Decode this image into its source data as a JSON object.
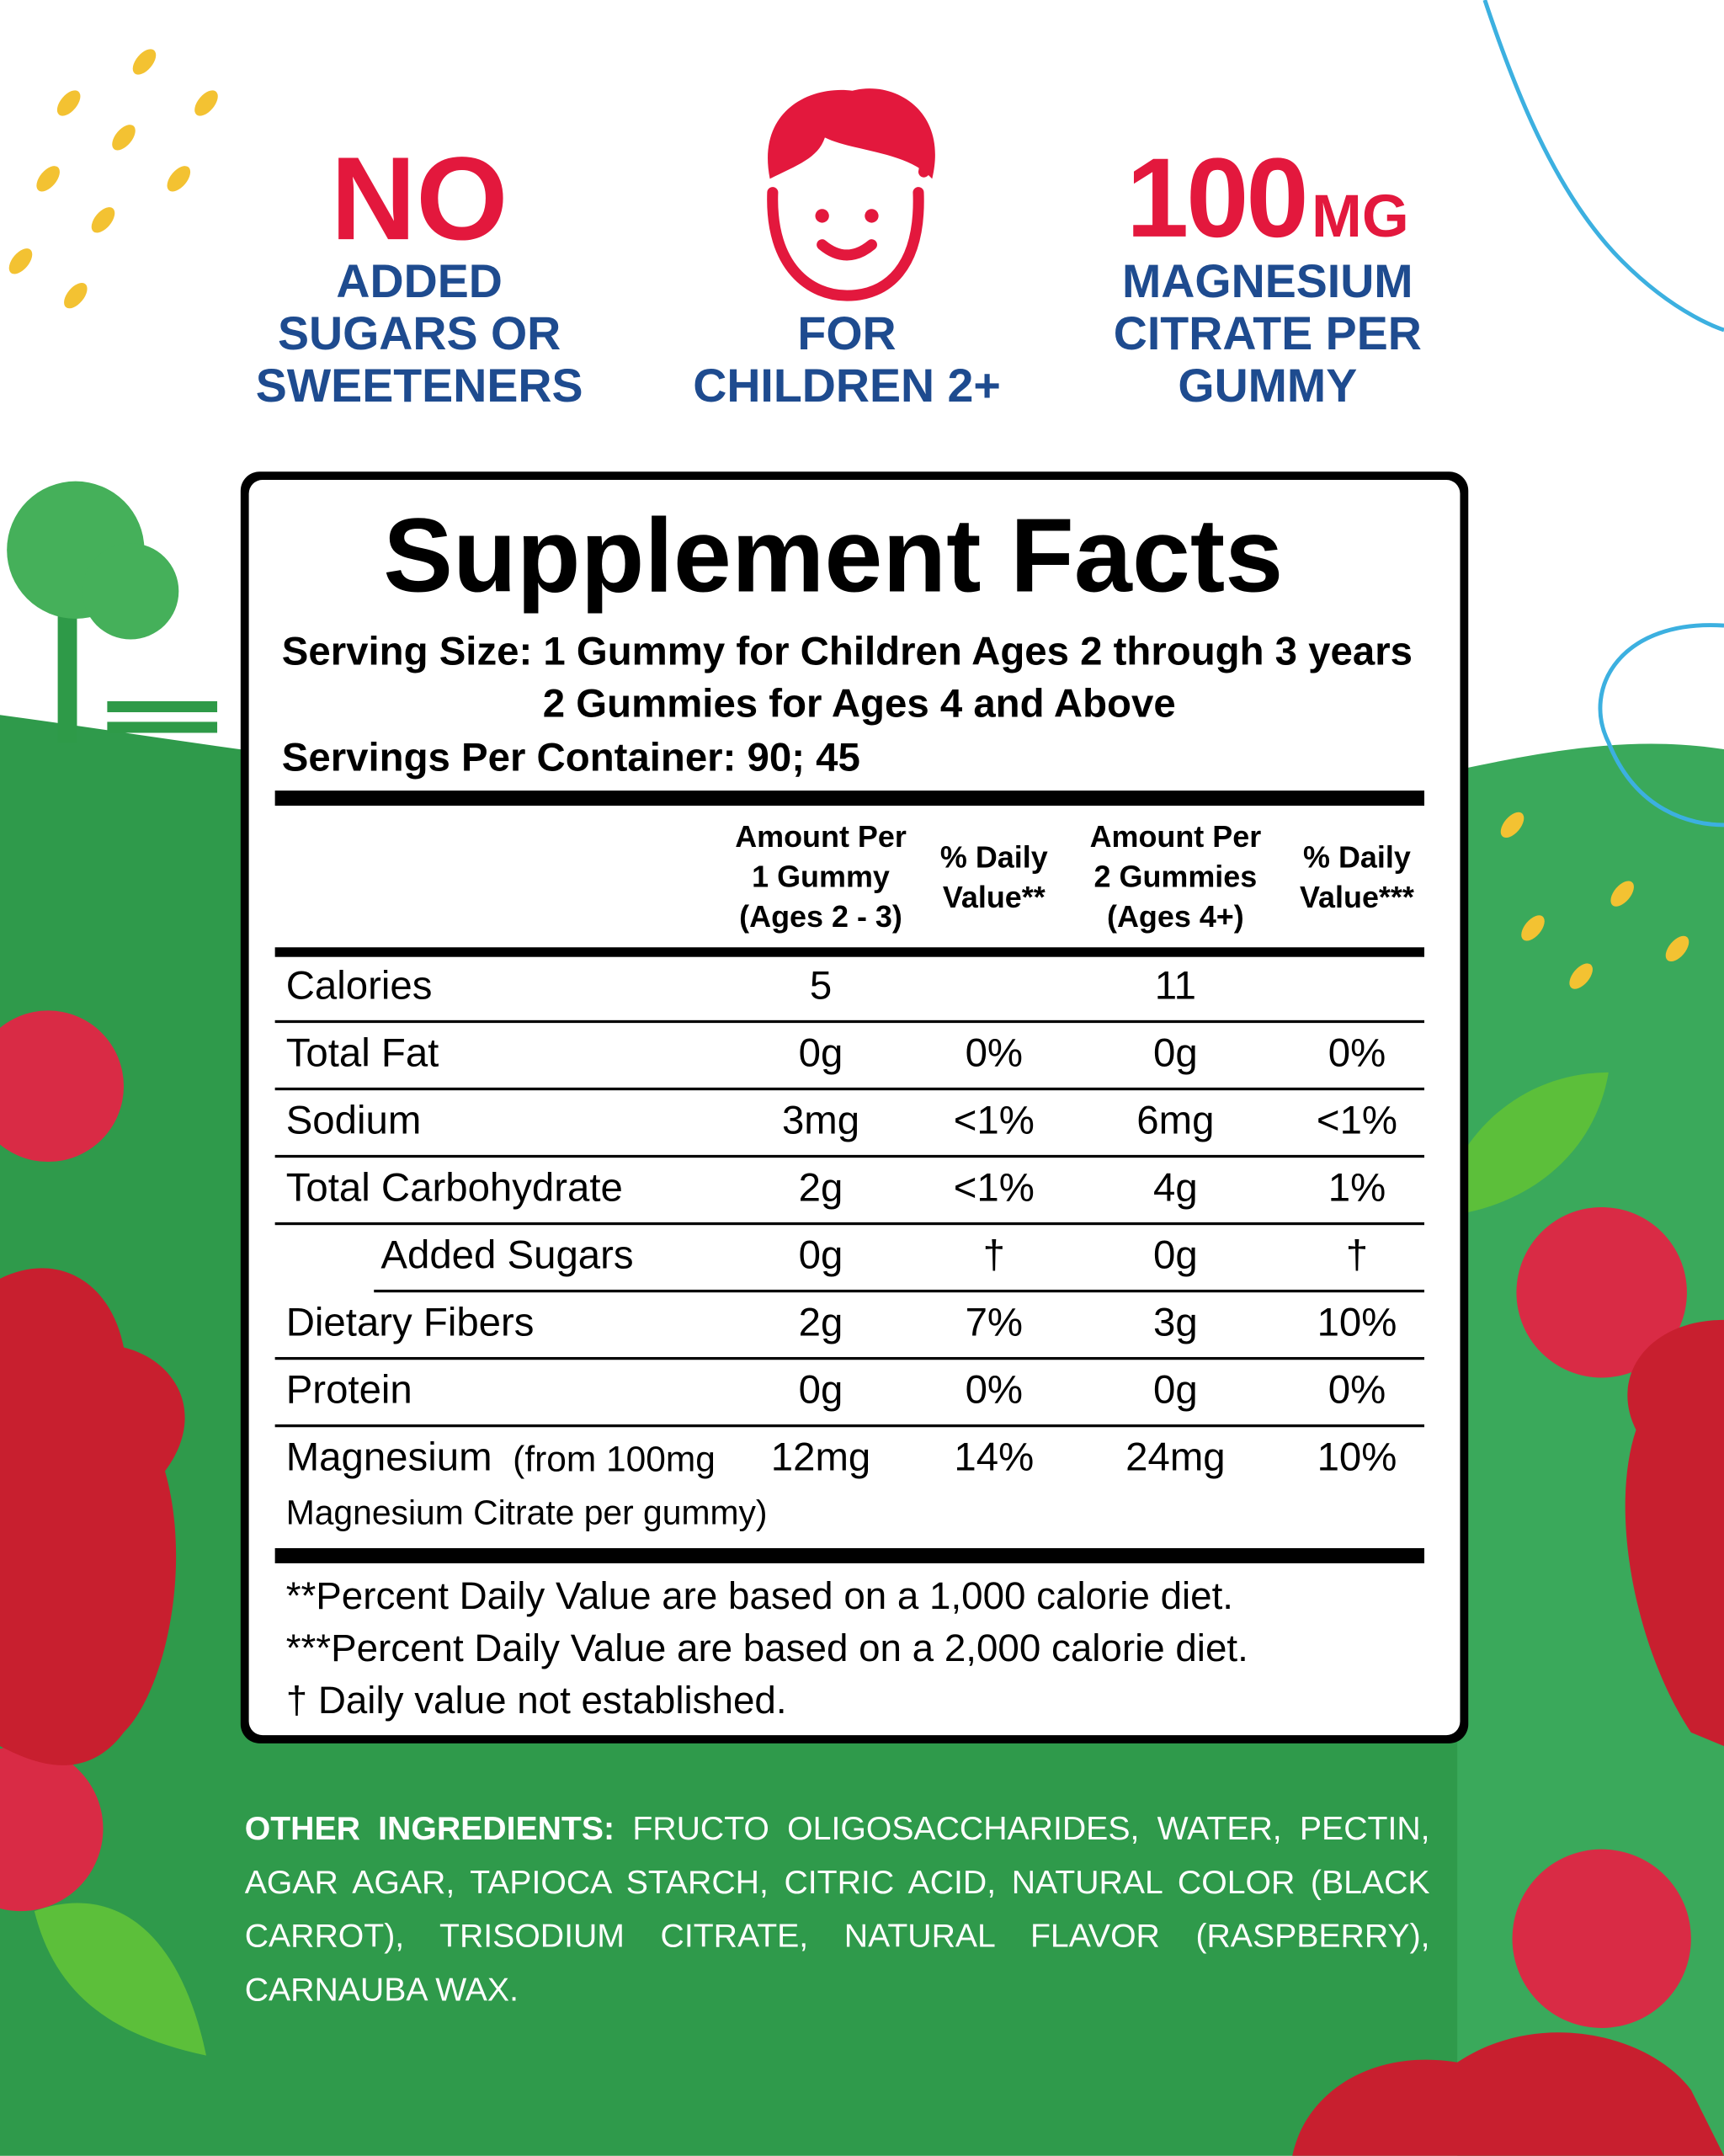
{
  "badges": [
    {
      "title": "NO",
      "lines": [
        "ADDED",
        "SUGARS OR",
        "SWEETENERS"
      ]
    },
    {
      "lines": [
        "FOR",
        "CHILDREN 2+"
      ]
    },
    {
      "title": "100",
      "unit": "MG",
      "lines": [
        "MAGNESIUM",
        "CITRATE PER",
        "GUMMY"
      ]
    }
  ],
  "facts": {
    "title": "Supplement Facts",
    "serving_size": [
      "Serving Size: 1 Gummy for Children Ages 2 through 3 years",
      "2 Gummies for Ages 4 and Above"
    ],
    "servings": "Servings Per Container: 90; 45",
    "headers": [
      [
        "Amount Per",
        "1 Gummy",
        "(Ages 2 - 3)"
      ],
      [
        "% Daily",
        "Value**"
      ],
      [
        "Amount Per",
        "2 Gummies",
        "(Ages 4+)"
      ],
      [
        "% Daily",
        "Value***"
      ]
    ],
    "rows": [
      {
        "label": "Calories",
        "values": [
          "5",
          null,
          "11",
          null
        ]
      },
      {
        "label": "Total Fat",
        "values": [
          "0g",
          "0%",
          "0g",
          "0%"
        ]
      },
      {
        "label": "Sodium",
        "values": [
          "3mg",
          "<1%",
          "6mg",
          "<1%"
        ]
      },
      {
        "label": "Total Carbohydrate",
        "values": [
          "2g",
          "<1%",
          "4g",
          "1%"
        ]
      },
      {
        "label": "Added Sugars",
        "indent": true,
        "values": [
          "0g",
          "†",
          "0g",
          "†"
        ]
      },
      {
        "label": "Dietary Fibers",
        "values": [
          "2g",
          "7%",
          "3g",
          "10%"
        ]
      },
      {
        "label": "Protein",
        "values": [
          "0g",
          "0%",
          "0g",
          "0%"
        ]
      },
      {
        "label": "Magnesium",
        "note": "(from 100mg",
        "note2": "Magnesium Citrate per gummy)",
        "values": [
          "12mg",
          "14%",
          "24mg",
          "10%"
        ]
      }
    ],
    "footnotes": [
      "**Percent Daily Value are based on a 1,000 calorie diet.",
      "***Percent Daily Value  are based on a 2,000 calorie diet.",
      "† Daily value not established."
    ]
  },
  "ingredients": {
    "label": "OTHER INGREDIENTS:",
    "text": "FRUCTO OLIGOSACCHARIDES, WATER, PECTIN, AGAR AGAR, TAPIOCA STARCH, CITRIC ACID, NATURAL COLOR (BLACK CARROT), TRISODIUM CITRATE, NATURAL FLAVOR (RASPBERRY), CARNAUBA WAX."
  }
}
